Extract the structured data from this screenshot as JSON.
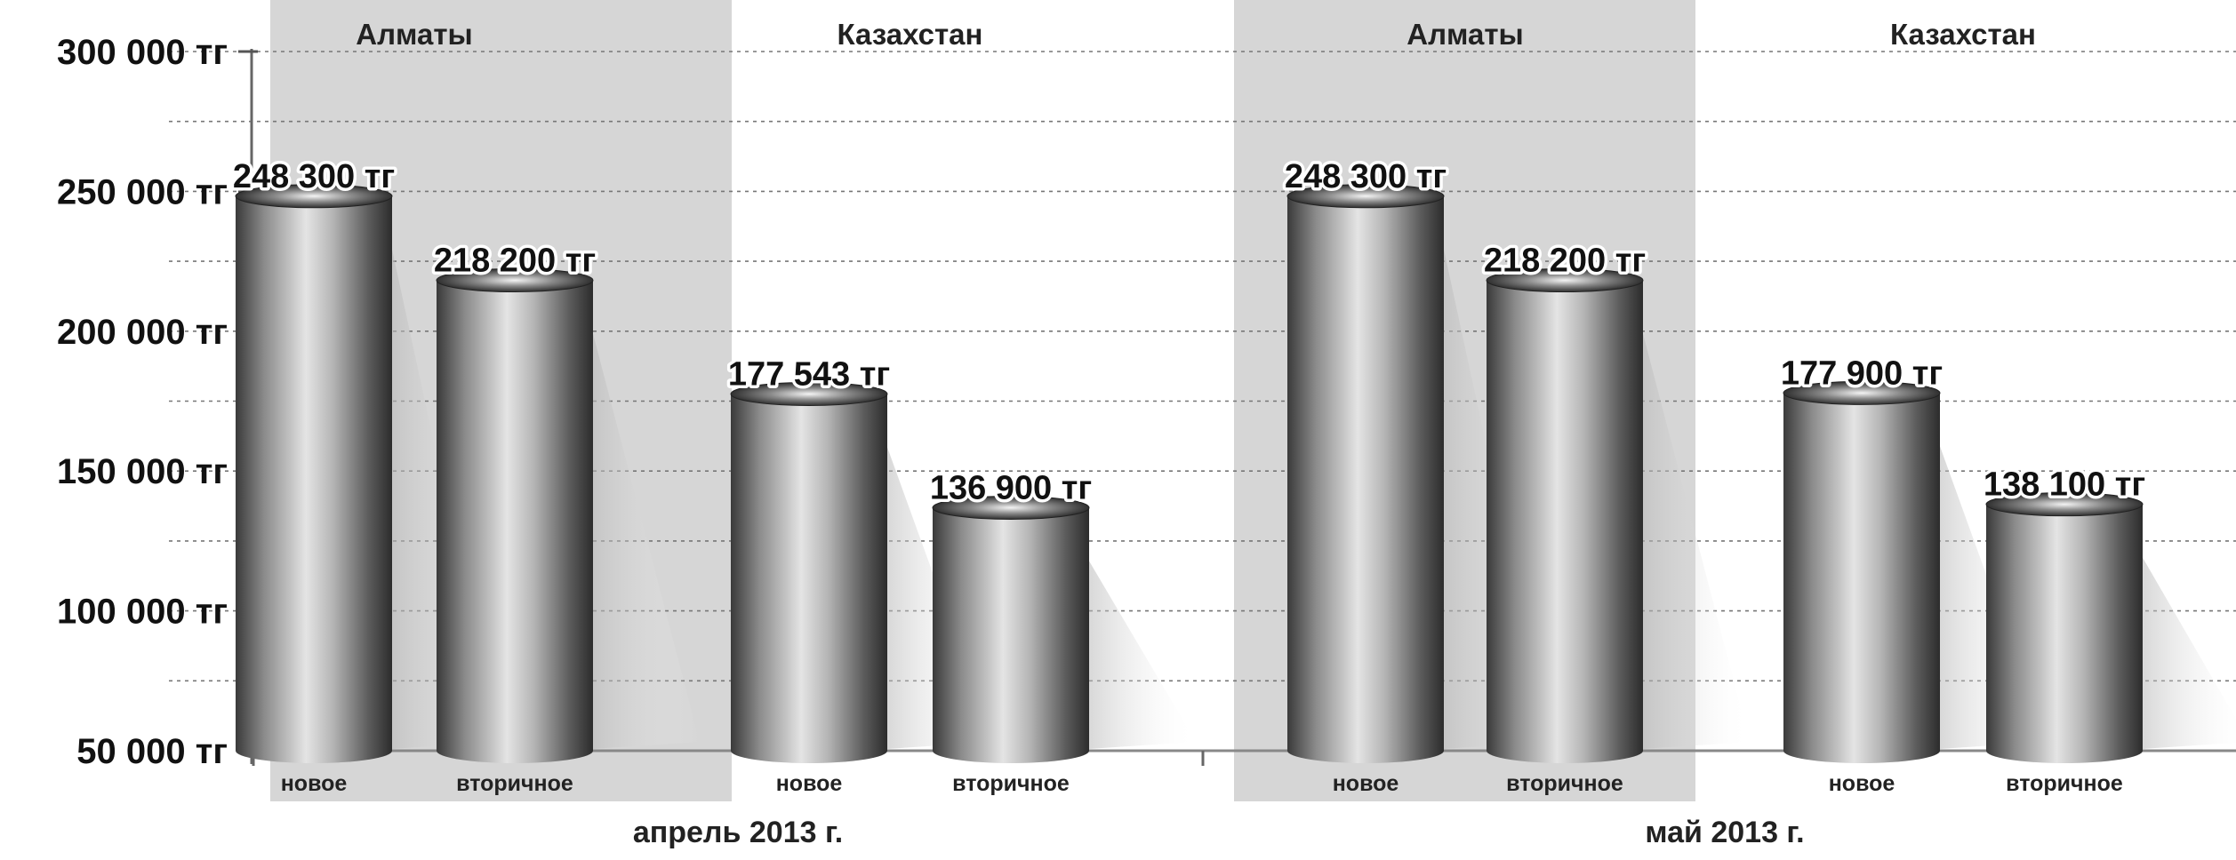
{
  "chart_data": {
    "type": "bar",
    "unit": "тг",
    "ylim": [
      50000,
      300000
    ],
    "yticks": [
      {
        "value": 300000,
        "label": "300 000 тг"
      },
      {
        "value": 250000,
        "label": "250 000 тг"
      },
      {
        "value": 200000,
        "label": "200 000 тг"
      },
      {
        "value": 150000,
        "label": "150 000 тг"
      },
      {
        "value": 100000,
        "label": "100 000 тг"
      },
      {
        "value": 50000,
        "label": "50 000 тг"
      }
    ],
    "grid": true,
    "periods": [
      {
        "label": "апрель 2013 г.",
        "groups": [
          {
            "region": "Алматы",
            "shaded": true,
            "bars": [
              {
                "category": "новое",
                "value": 248300,
                "label": "248 300 тг"
              },
              {
                "category": "вторичное",
                "value": 218200,
                "label": "218 200 тг"
              }
            ]
          },
          {
            "region": "Казахстан",
            "shaded": false,
            "bars": [
              {
                "category": "новое",
                "value": 177543,
                "label": "177 543 тг"
              },
              {
                "category": "вторичное",
                "value": 136900,
                "label": "136 900 тг"
              }
            ]
          }
        ]
      },
      {
        "label": "май 2013 г.",
        "groups": [
          {
            "region": "Алматы",
            "shaded": true,
            "bars": [
              {
                "category": "новое",
                "value": 248300,
                "label": "248 300 тг"
              },
              {
                "category": "вторичное",
                "value": 218200,
                "label": "218 200 тг"
              }
            ]
          },
          {
            "region": "Казахстан",
            "shaded": false,
            "bars": [
              {
                "category": "новое",
                "value": 177900,
                "label": "177 900 тг"
              },
              {
                "category": "вторичное",
                "value": 138100,
                "label": "138 100 тг"
              }
            ]
          }
        ]
      }
    ]
  }
}
